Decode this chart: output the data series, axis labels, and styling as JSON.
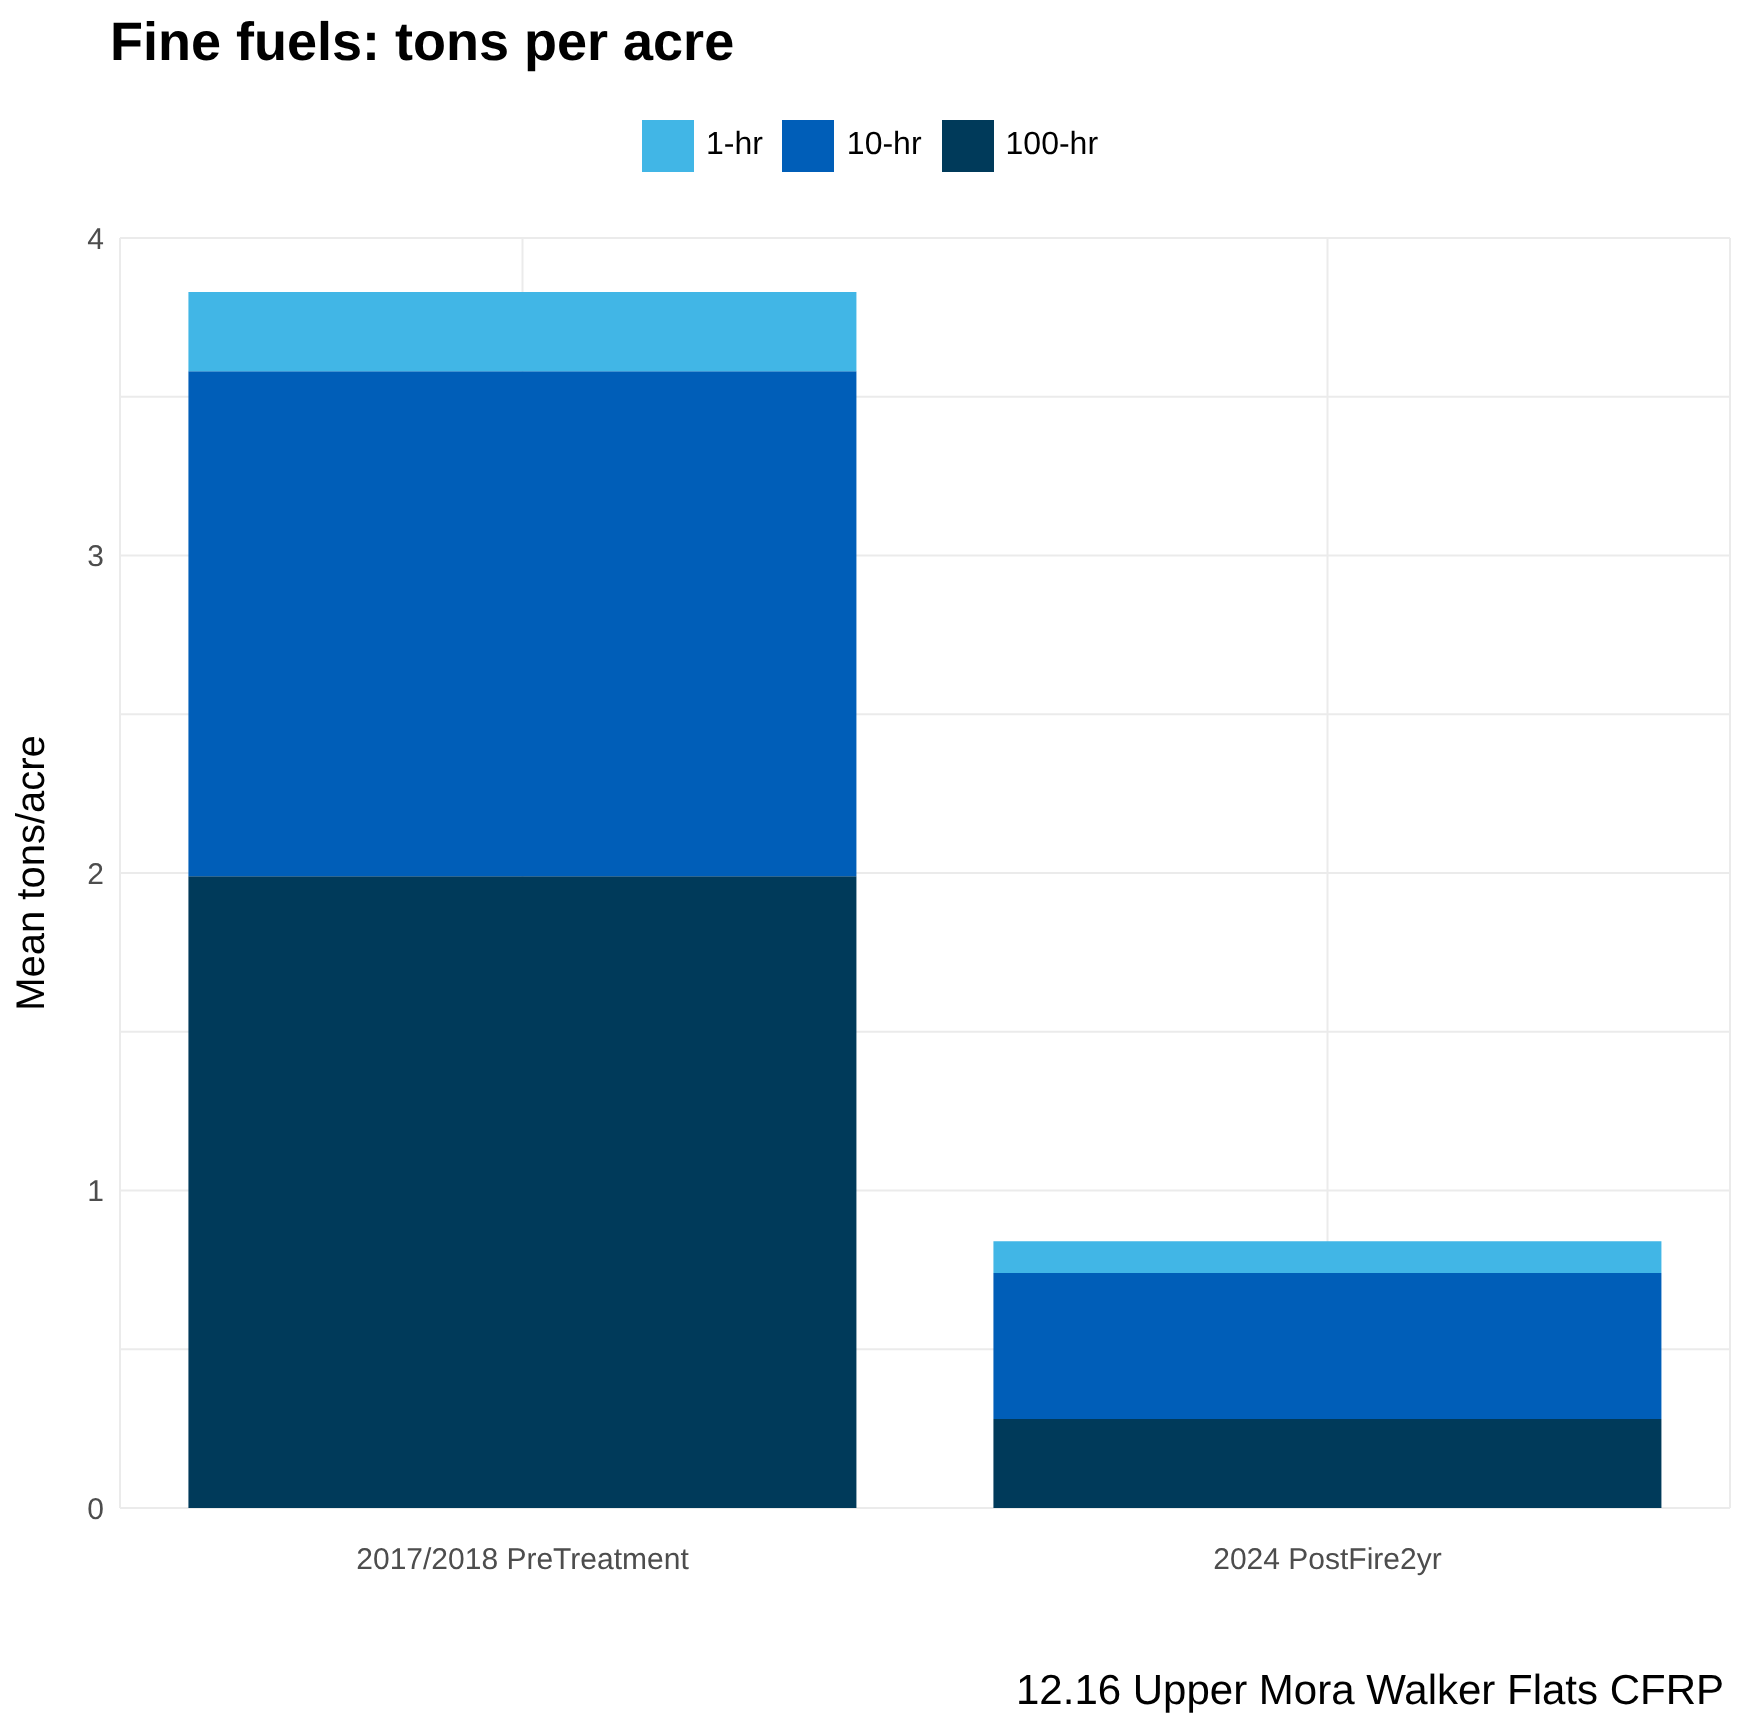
{
  "chart_data": {
    "type": "bar",
    "title": "Fine fuels: tons per acre",
    "ylabel": "Mean tons/acre",
    "categories": [
      "2017/2018 PreTreatment",
      "2024 PostFire2yr"
    ],
    "series": [
      {
        "name": "100-hr",
        "color": "#003a5a",
        "values": [
          1.99,
          0.28
        ]
      },
      {
        "name": "10-hr",
        "color": "#005eb8",
        "values": [
          1.59,
          0.46
        ]
      },
      {
        "name": "1-hr",
        "color": "#41b6e6",
        "values": [
          0.25,
          0.1
        ]
      }
    ],
    "stacked": true,
    "ylim": [
      0,
      4
    ],
    "yticks": [
      0,
      {
        "value": 0.5,
        "label": null
      },
      1,
      {
        "value": 1.5,
        "label": null
      },
      2,
      {
        "value": 2.5,
        "label": null
      },
      3,
      {
        "value": 3.5,
        "label": null
      },
      4
    ],
    "grid": true,
    "legend": "top",
    "annotations": [
      "12.16 Upper Mora Walker Flats CFRP"
    ]
  }
}
